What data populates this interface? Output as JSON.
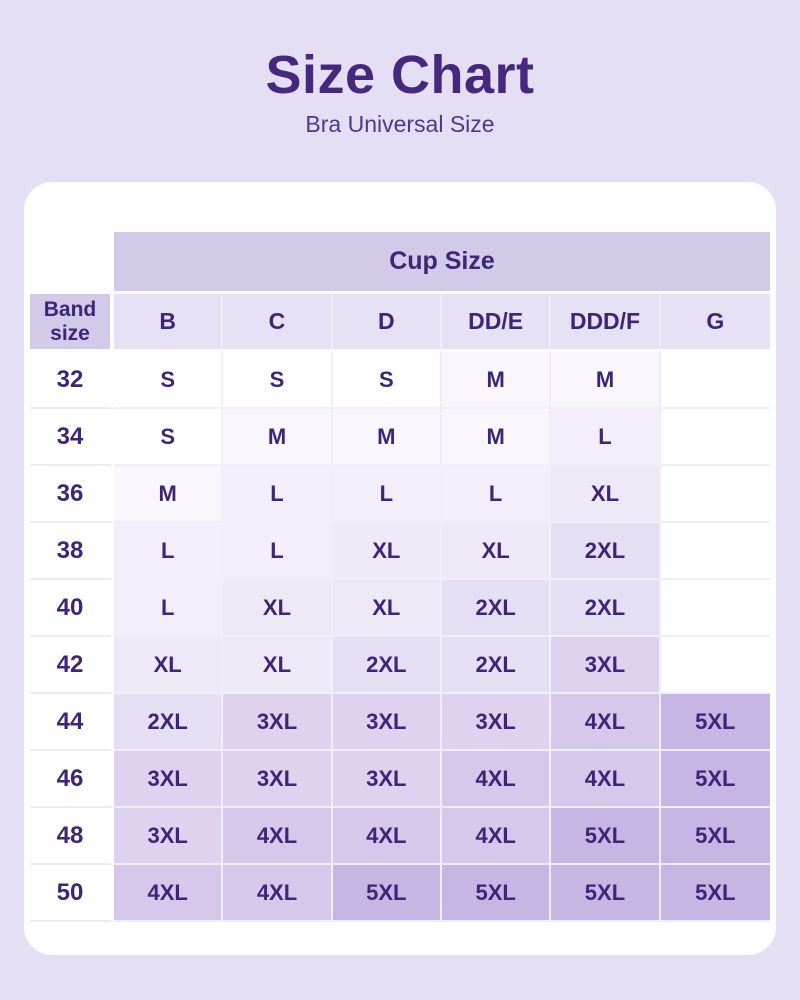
{
  "page": {
    "title": "Size Chart",
    "subtitle": "Bra Universal Size",
    "background_color": "#e5dff6",
    "card_color": "#ffffff",
    "title_color": "#46297e",
    "table_text_color": "#3d2677"
  },
  "table": {
    "cup_size_label": "Cup Size",
    "band_size_label": "Band size",
    "columns": [
      "B",
      "C",
      "D",
      "DD/E",
      "DDD/F",
      "G"
    ],
    "rows": [
      {
        "band": "32",
        "cells": [
          "S",
          "S",
          "S",
          "M",
          "M",
          ""
        ]
      },
      {
        "band": "34",
        "cells": [
          "S",
          "M",
          "M",
          "M",
          "L",
          ""
        ]
      },
      {
        "band": "36",
        "cells": [
          "M",
          "L",
          "L",
          "L",
          "XL",
          ""
        ]
      },
      {
        "band": "38",
        "cells": [
          "L",
          "L",
          "XL",
          "XL",
          "2XL",
          ""
        ]
      },
      {
        "band": "40",
        "cells": [
          "L",
          "XL",
          "XL",
          "2XL",
          "2XL",
          ""
        ]
      },
      {
        "band": "42",
        "cells": [
          "XL",
          "XL",
          "2XL",
          "2XL",
          "3XL",
          ""
        ]
      },
      {
        "band": "44",
        "cells": [
          "2XL",
          "3XL",
          "3XL",
          "3XL",
          "4XL",
          "5XL"
        ]
      },
      {
        "band": "46",
        "cells": [
          "3XL",
          "3XL",
          "3XL",
          "4XL",
          "4XL",
          "5XL"
        ]
      },
      {
        "band": "48",
        "cells": [
          "3XL",
          "4XL",
          "4XL",
          "4XL",
          "5XL",
          "5XL"
        ]
      },
      {
        "band": "50",
        "cells": [
          "4XL",
          "4XL",
          "5XL",
          "5XL",
          "5XL",
          "5XL"
        ]
      }
    ],
    "size_cell_colors": {
      "S": "#ffffff",
      "M": "#f9f6fd",
      "L": "#f3eefa",
      "XL": "#eee8f7",
      "2XL": "#e6def3",
      "3XL": "#ded2ef",
      "4XL": "#d5c8ea",
      "5XL": "#c6b6e3",
      "": "#ffffff"
    },
    "header_band_bg": "#d3c9e9",
    "column_header_bg": "#e7e1f5"
  },
  "chart_data": {
    "type": "table",
    "title": "Size Chart",
    "subtitle": "Bra Universal Size",
    "column_group_label": "Cup Size",
    "row_group_label": "Band size",
    "columns": [
      "B",
      "C",
      "D",
      "DD/E",
      "DDD/F",
      "G"
    ],
    "rows": [
      {
        "band": "32",
        "values": [
          "S",
          "S",
          "S",
          "M",
          "M",
          null
        ]
      },
      {
        "band": "34",
        "values": [
          "S",
          "M",
          "M",
          "M",
          "L",
          null
        ]
      },
      {
        "band": "36",
        "values": [
          "M",
          "L",
          "L",
          "L",
          "XL",
          null
        ]
      },
      {
        "band": "38",
        "values": [
          "L",
          "L",
          "XL",
          "XL",
          "2XL",
          null
        ]
      },
      {
        "band": "40",
        "values": [
          "L",
          "XL",
          "XL",
          "2XL",
          "2XL",
          null
        ]
      },
      {
        "band": "42",
        "values": [
          "XL",
          "XL",
          "2XL",
          "2XL",
          "3XL",
          null
        ]
      },
      {
        "band": "44",
        "values": [
          "2XL",
          "3XL",
          "3XL",
          "3XL",
          "4XL",
          "5XL"
        ]
      },
      {
        "band": "46",
        "values": [
          "3XL",
          "3XL",
          "3XL",
          "4XL",
          "4XL",
          "5XL"
        ]
      },
      {
        "band": "48",
        "values": [
          "3XL",
          "4XL",
          "4XL",
          "4XL",
          "5XL",
          "5XL"
        ]
      },
      {
        "band": "50",
        "values": [
          "4XL",
          "4XL",
          "5XL",
          "5XL",
          "5XL",
          "5XL"
        ]
      }
    ],
    "legend": "cell shading darkens as size increases from S to 5XL"
  }
}
